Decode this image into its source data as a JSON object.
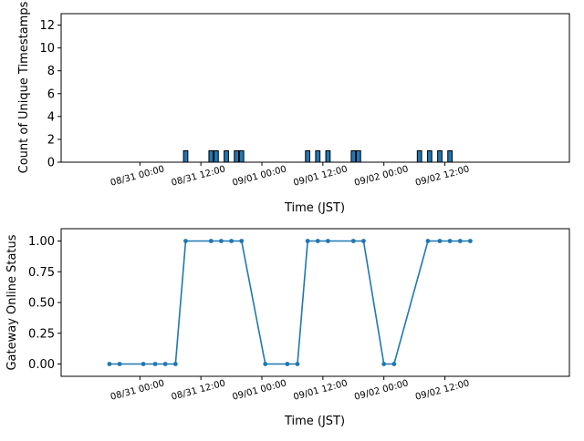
{
  "chart_data": [
    {
      "type": "bar",
      "xlabel": "Time (JST)",
      "ylabel": "Count of Unique Timestamps",
      "ylim": [
        0,
        13
      ],
      "yticks": [
        0,
        2,
        4,
        6,
        8,
        10,
        12
      ],
      "xlim_hours": [
        -15.5,
        84.5
      ],
      "xtick_labels": [
        "08/31 00:00",
        "08/31 12:00",
        "09/01 00:00",
        "09/01 12:00",
        "09/02 00:00",
        "09/02 12:00"
      ],
      "bar_color": "#1f77b4",
      "bars": [
        {
          "x": "08/31 09:00",
          "value": 1
        },
        {
          "x": "08/31 14:00",
          "value": 1
        },
        {
          "x": "08/31 15:00",
          "value": 1
        },
        {
          "x": "08/31 17:00",
          "value": 1
        },
        {
          "x": "08/31 19:00",
          "value": 1
        },
        {
          "x": "08/31 20:00",
          "value": 1
        },
        {
          "x": "09/01 09:00",
          "value": 1
        },
        {
          "x": "09/01 11:00",
          "value": 1
        },
        {
          "x": "09/01 13:00",
          "value": 1
        },
        {
          "x": "09/01 18:00",
          "value": 1
        },
        {
          "x": "09/01 19:00",
          "value": 1
        },
        {
          "x": "09/02 07:00",
          "value": 1
        },
        {
          "x": "09/02 09:00",
          "value": 1
        },
        {
          "x": "09/02 11:00",
          "value": 1
        },
        {
          "x": "09/02 13:00",
          "value": 1
        }
      ]
    },
    {
      "type": "line",
      "xlabel": "Time (JST)",
      "ylabel": "Gateway Online Status",
      "ylim": [
        -0.1,
        1.1
      ],
      "yticks": [
        "0.00",
        "0.25",
        "0.50",
        "0.75",
        "1.00"
      ],
      "xlim_hours": [
        -15.5,
        84.5
      ],
      "xtick_labels": [
        "08/31 00:00",
        "08/31 12:00",
        "09/01 00:00",
        "09/01 12:00",
        "09/02 00:00",
        "09/02 12:00"
      ],
      "line_color": "#1f77b4",
      "points": [
        {
          "x": "08/30 18:00",
          "y": 0
        },
        {
          "x": "08/30 20:00",
          "y": 0
        },
        {
          "x": "08/31 00:40",
          "y": 0
        },
        {
          "x": "08/31 03:00",
          "y": 0
        },
        {
          "x": "08/31 05:00",
          "y": 0
        },
        {
          "x": "08/31 07:00",
          "y": 0
        },
        {
          "x": "08/31 09:00",
          "y": 1
        },
        {
          "x": "08/31 14:00",
          "y": 1
        },
        {
          "x": "08/31 16:00",
          "y": 1
        },
        {
          "x": "08/31 18:00",
          "y": 1
        },
        {
          "x": "08/31 20:00",
          "y": 1
        },
        {
          "x": "09/01 00:40",
          "y": 0
        },
        {
          "x": "09/01 05:00",
          "y": 0
        },
        {
          "x": "09/01 07:00",
          "y": 0
        },
        {
          "x": "09/01 09:00",
          "y": 1
        },
        {
          "x": "09/01 11:00",
          "y": 1
        },
        {
          "x": "09/01 13:00",
          "y": 1
        },
        {
          "x": "09/01 18:00",
          "y": 1
        },
        {
          "x": "09/01 20:00",
          "y": 1
        },
        {
          "x": "09/02 00:00",
          "y": 0
        },
        {
          "x": "09/02 02:00",
          "y": 0
        },
        {
          "x": "09/02 08:40",
          "y": 1
        },
        {
          "x": "09/02 11:00",
          "y": 1
        },
        {
          "x": "09/02 13:00",
          "y": 1
        },
        {
          "x": "09/02 15:00",
          "y": 1
        },
        {
          "x": "09/02 17:00",
          "y": 1
        }
      ]
    }
  ]
}
